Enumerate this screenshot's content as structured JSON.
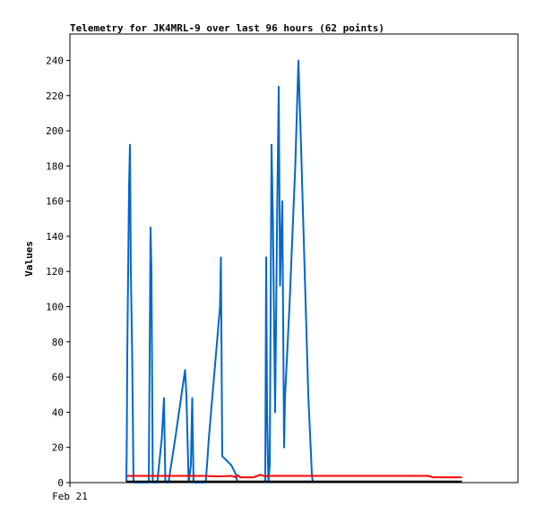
{
  "chart_data": {
    "type": "line",
    "title": "Telemetry for JK4MRL-9 over last 96 hours (62 points)",
    "xlabel": "",
    "ylabel": "Values",
    "x_tick_labels": [
      "Feb 21"
    ],
    "x_tick_positions": [
      0
    ],
    "xlim": [
      0,
      100
    ],
    "ylim": [
      0,
      255
    ],
    "y_ticks": [
      0,
      20,
      40,
      60,
      80,
      100,
      120,
      140,
      160,
      180,
      200,
      220,
      240
    ],
    "grid": false,
    "legend": "none",
    "series": [
      {
        "color": "#0066cc",
        "points": [
          [
            12.6,
            0
          ],
          [
            12.7,
            25
          ],
          [
            12.8,
            72
          ],
          [
            13.0,
            120
          ],
          [
            13.2,
            168
          ],
          [
            13.4,
            192
          ],
          [
            13.6,
            120
          ],
          [
            13.9,
            72
          ],
          [
            14.2,
            0
          ],
          [
            17.6,
            0
          ],
          [
            17.8,
            72
          ],
          [
            18.0,
            145
          ],
          [
            18.2,
            120
          ],
          [
            18.5,
            0
          ],
          [
            19.5,
            0
          ],
          [
            20.5,
            25
          ],
          [
            21.0,
            48
          ],
          [
            21.3,
            0
          ],
          [
            22.0,
            0
          ],
          [
            23.5,
            25
          ],
          [
            25.7,
            64
          ],
          [
            26.0,
            50
          ],
          [
            26.5,
            0
          ],
          [
            27.0,
            10
          ],
          [
            27.3,
            48
          ],
          [
            27.6,
            0
          ],
          [
            30.3,
            0
          ],
          [
            30.6,
            10
          ],
          [
            31.0,
            25
          ],
          [
            33.5,
            100
          ],
          [
            33.7,
            128
          ],
          [
            34.0,
            15
          ],
          [
            36.0,
            10
          ],
          [
            37.0,
            5
          ],
          [
            37.4,
            0
          ]
        ]
      },
      {
        "color": "#0066cc",
        "points": [
          [
            43.6,
            0
          ],
          [
            43.8,
            128
          ],
          [
            44.0,
            40
          ],
          [
            44.3,
            0
          ],
          [
            44.6,
            10
          ],
          [
            45.0,
            192
          ],
          [
            45.3,
            150
          ],
          [
            45.8,
            40
          ],
          [
            46.2,
            140
          ],
          [
            46.6,
            225
          ],
          [
            46.9,
            112
          ],
          [
            47.4,
            160
          ],
          [
            47.8,
            20
          ],
          [
            48.0,
            48
          ],
          [
            49.0,
            100
          ],
          [
            50.3,
            180
          ],
          [
            51.0,
            240
          ],
          [
            51.6,
            190
          ],
          [
            53.2,
            50
          ],
          [
            54.0,
            5
          ],
          [
            54.2,
            0
          ]
        ]
      },
      {
        "color": "#ff0000",
        "points": [
          [
            12.8,
            3.8
          ],
          [
            20.0,
            3.8
          ],
          [
            30.0,
            3.8
          ],
          [
            33.0,
            3.5
          ],
          [
            36.0,
            3.8
          ],
          [
            37.0,
            3.0
          ],
          [
            37.5,
            4.2
          ],
          [
            38.0,
            3.0
          ],
          [
            41.0,
            3.0
          ],
          [
            42.5,
            4.5
          ],
          [
            43.5,
            3.6
          ],
          [
            45.0,
            3.8
          ],
          [
            55.0,
            3.8
          ],
          [
            65.0,
            3.8
          ],
          [
            75.0,
            3.8
          ],
          [
            80.0,
            3.8
          ],
          [
            81.0,
            3.0
          ],
          [
            87.5,
            3.0
          ]
        ]
      },
      {
        "color": "#000000",
        "points": [
          [
            12.6,
            0.6
          ],
          [
            87.5,
            0.6
          ]
        ]
      }
    ]
  }
}
